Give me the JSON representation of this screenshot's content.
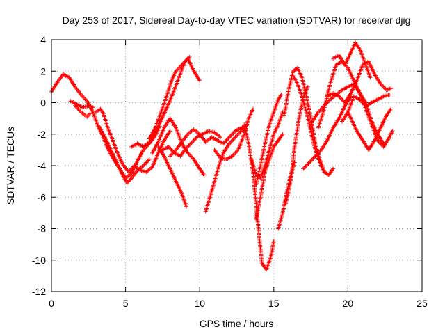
{
  "chart_data": {
    "type": "scatter",
    "title": "Day 253 of 2017, Sidereal Day-to-day VTEC variation (SDTVAR) for receiver djig",
    "xlabel": "GPS time / hours",
    "ylabel": "SDTVAR / TECUs",
    "xlim": [
      0,
      25
    ],
    "ylim": [
      -12,
      4
    ],
    "xticks": [
      0,
      5,
      10,
      15,
      20,
      25
    ],
    "yticks": [
      -12,
      -10,
      -8,
      -6,
      -4,
      -2,
      0,
      2,
      4
    ],
    "grid": true,
    "marker": "+",
    "color": "#ff0000",
    "series": [
      {
        "points": [
          [
            0.0,
            0.7
          ],
          [
            0.4,
            1.3
          ],
          [
            0.8,
            1.8
          ],
          [
            1.2,
            1.6
          ],
          [
            1.6,
            1.0
          ],
          [
            2.0,
            0.5
          ],
          [
            2.4,
            0.1
          ],
          [
            2.8,
            -0.6
          ],
          [
            3.1,
            -1.4
          ],
          [
            3.5,
            -2.2
          ],
          [
            3.8,
            -2.9
          ],
          [
            4.2,
            -3.6
          ],
          [
            4.6,
            -4.2
          ],
          [
            5.0,
            -4.8
          ],
          [
            5.4,
            -4.5
          ],
          [
            5.8,
            -3.7
          ],
          [
            6.2,
            -3.0
          ],
          [
            6.6,
            -2.6
          ],
          [
            7.0,
            -2.1
          ],
          [
            7.3,
            -1.5
          ]
        ]
      },
      {
        "points": [
          [
            1.3,
            0.1
          ],
          [
            1.7,
            -0.1
          ],
          [
            2.1,
            -0.3
          ],
          [
            2.5,
            -0.2
          ],
          [
            2.8,
            -0.3
          ]
        ]
      },
      {
        "points": [
          [
            1.6,
            -0.2
          ],
          [
            2.0,
            -0.6
          ],
          [
            2.4,
            -0.9
          ],
          [
            2.6,
            -0.7
          ]
        ]
      },
      {
        "points": [
          [
            3.0,
            -0.6
          ],
          [
            3.3,
            -0.4
          ],
          [
            3.5,
            -0.7
          ],
          [
            3.8,
            -1.6
          ],
          [
            4.1,
            -2.3
          ],
          [
            4.4,
            -3.1
          ],
          [
            4.8,
            -3.9
          ],
          [
            5.2,
            -4.4
          ],
          [
            5.6,
            -4.0
          ],
          [
            6.0,
            -4.3
          ],
          [
            6.4,
            -4.4
          ],
          [
            6.8,
            -4.1
          ],
          [
            7.2,
            -3.2
          ],
          [
            7.6,
            -2.4
          ],
          [
            8.0,
            -1.8
          ]
        ]
      },
      {
        "points": [
          [
            3.2,
            -1.5
          ],
          [
            3.6,
            -2.2
          ],
          [
            4.0,
            -3.0
          ],
          [
            4.4,
            -3.8
          ],
          [
            4.8,
            -4.6
          ],
          [
            5.1,
            -5.1
          ],
          [
            5.4,
            -4.8
          ],
          [
            5.8,
            -4.3
          ],
          [
            6.2,
            -4.0
          ],
          [
            6.6,
            -3.6
          ]
        ]
      },
      {
        "points": [
          [
            5.4,
            -2.8
          ],
          [
            5.8,
            -2.6
          ],
          [
            6.2,
            -2.8
          ],
          [
            6.6,
            -2.5
          ],
          [
            7.0,
            -1.9
          ],
          [
            7.4,
            -1.1
          ],
          [
            7.8,
            -0.3
          ],
          [
            8.2,
            0.6
          ],
          [
            8.6,
            1.6
          ],
          [
            9.0,
            2.6
          ],
          [
            9.3,
            2.9
          ]
        ]
      },
      {
        "points": [
          [
            6.6,
            -2.3
          ],
          [
            7.0,
            -1.6
          ],
          [
            7.4,
            -0.6
          ],
          [
            7.8,
            0.5
          ],
          [
            8.1,
            1.4
          ],
          [
            8.4,
            2.0
          ],
          [
            8.8,
            2.4
          ],
          [
            9.2,
            2.8
          ],
          [
            9.6,
            2.0
          ],
          [
            10.0,
            1.4
          ]
        ]
      },
      {
        "points": [
          [
            6.8,
            -3.2
          ],
          [
            7.2,
            -2.5
          ],
          [
            7.6,
            -1.6
          ],
          [
            8.0,
            -1.0
          ],
          [
            8.4,
            -1.6
          ],
          [
            8.8,
            -2.6
          ],
          [
            9.2,
            -3.2
          ],
          [
            9.6,
            -3.6
          ],
          [
            10.0,
            -4.2
          ],
          [
            10.3,
            -4.6
          ]
        ]
      },
      {
        "points": [
          [
            7.2,
            -2.8
          ],
          [
            7.6,
            -3.4
          ],
          [
            8.0,
            -4.2
          ],
          [
            8.4,
            -5.0
          ],
          [
            8.8,
            -5.8
          ],
          [
            9.1,
            -6.6
          ]
        ]
      },
      {
        "points": [
          [
            7.5,
            -3.0
          ],
          [
            7.9,
            -2.8
          ],
          [
            8.3,
            -3.2
          ],
          [
            8.7,
            -3.4
          ],
          [
            9.0,
            -3.0
          ],
          [
            9.4,
            -2.6
          ],
          [
            9.8,
            -2.2
          ],
          [
            10.2,
            -2.0
          ],
          [
            10.6,
            -1.8
          ],
          [
            11.0,
            -1.9
          ],
          [
            11.4,
            -2.2
          ]
        ]
      },
      {
        "points": [
          [
            8.0,
            -3.4
          ],
          [
            8.4,
            -3.0
          ],
          [
            8.8,
            -2.5
          ],
          [
            9.2,
            -2.0
          ],
          [
            9.6,
            -1.7
          ],
          [
            10.0,
            -2.0
          ],
          [
            10.4,
            -2.5
          ],
          [
            10.8,
            -2.2
          ],
          [
            11.2,
            -2.4
          ],
          [
            11.6,
            -2.6
          ],
          [
            12.0,
            -2.2
          ],
          [
            12.4,
            -1.8
          ],
          [
            12.8,
            -1.6
          ],
          [
            13.1,
            -1.5
          ]
        ]
      },
      {
        "points": [
          [
            10.4,
            -6.9
          ],
          [
            10.7,
            -6.0
          ],
          [
            11.0,
            -5.0
          ],
          [
            11.3,
            -4.0
          ],
          [
            11.6,
            -3.2
          ],
          [
            12.0,
            -2.6
          ],
          [
            12.4,
            -2.2
          ],
          [
            12.8,
            -1.8
          ],
          [
            13.2,
            -1.4
          ]
        ]
      },
      {
        "points": [
          [
            11.0,
            -3.0
          ],
          [
            11.4,
            -3.5
          ],
          [
            11.8,
            -3.6
          ],
          [
            12.2,
            -3.4
          ],
          [
            12.6,
            -3.0
          ],
          [
            13.0,
            -2.0
          ],
          [
            13.3,
            -1.0
          ],
          [
            13.6,
            -0.4
          ]
        ]
      },
      {
        "points": [
          [
            13.0,
            -1.4
          ],
          [
            13.3,
            -2.6
          ],
          [
            13.6,
            -4.4
          ],
          [
            13.8,
            -6.4
          ],
          [
            14.0,
            -8.4
          ],
          [
            14.2,
            -10.2
          ],
          [
            14.5,
            -10.6
          ],
          [
            14.8,
            -9.8
          ],
          [
            15.0,
            -8.8
          ]
        ]
      },
      {
        "points": [
          [
            13.5,
            -3.6
          ],
          [
            13.8,
            -4.6
          ],
          [
            14.1,
            -4.8
          ],
          [
            14.4,
            -4.0
          ],
          [
            14.7,
            -3.0
          ],
          [
            15.0,
            -2.0
          ],
          [
            15.3,
            -1.4
          ],
          [
            15.6,
            -0.6
          ]
        ]
      },
      {
        "points": [
          [
            13.8,
            -5.2
          ],
          [
            14.1,
            -4.0
          ],
          [
            14.4,
            -2.6
          ],
          [
            14.7,
            -1.4
          ],
          [
            15.0,
            -0.6
          ],
          [
            15.3,
            0.2
          ],
          [
            15.5,
            0.5
          ]
        ]
      },
      {
        "points": [
          [
            13.8,
            -7.4
          ],
          [
            14.1,
            -6.0
          ],
          [
            14.4,
            -4.4
          ],
          [
            14.7,
            -3.6
          ],
          [
            15.0,
            -2.8
          ],
          [
            15.3,
            -2.4
          ],
          [
            15.6,
            -2.0
          ]
        ]
      },
      {
        "points": [
          [
            15.3,
            -8.0
          ],
          [
            15.6,
            -7.0
          ],
          [
            15.9,
            -5.6
          ],
          [
            16.2,
            -4.4
          ],
          [
            16.4,
            -3.8
          ]
        ]
      },
      {
        "points": [
          [
            15.8,
            -6.4
          ],
          [
            16.0,
            -5.6
          ],
          [
            16.2,
            -4.6
          ],
          [
            16.4,
            -2.8
          ],
          [
            16.7,
            -1.0
          ],
          [
            17.0,
            0.4
          ],
          [
            17.3,
            1.0
          ]
        ]
      },
      {
        "points": [
          [
            15.7,
            -0.8
          ],
          [
            16.0,
            0.8
          ],
          [
            16.3,
            2.0
          ],
          [
            16.6,
            2.2
          ],
          [
            16.9,
            1.6
          ],
          [
            17.2,
            0.4
          ],
          [
            17.5,
            -1.0
          ],
          [
            17.8,
            -2.6
          ],
          [
            18.1,
            -3.6
          ],
          [
            18.4,
            -4.4
          ],
          [
            18.7,
            -4.6
          ],
          [
            19.0,
            -4.2
          ]
        ]
      },
      {
        "points": [
          [
            16.3,
            1.7
          ],
          [
            16.6,
            1.2
          ],
          [
            16.9,
            0.4
          ],
          [
            17.2,
            -0.6
          ],
          [
            17.5,
            -1.8
          ],
          [
            17.8,
            -3.0
          ],
          [
            18.1,
            -3.8
          ],
          [
            18.4,
            -4.4
          ]
        ]
      },
      {
        "points": [
          [
            17.0,
            -4.2
          ],
          [
            17.4,
            -3.8
          ],
          [
            17.8,
            -3.4
          ],
          [
            18.2,
            -3.0
          ],
          [
            18.6,
            -2.4
          ],
          [
            19.0,
            -1.6
          ],
          [
            19.4,
            -1.0
          ],
          [
            19.8,
            -0.2
          ],
          [
            20.2,
            0.4
          ]
        ]
      },
      {
        "points": [
          [
            17.6,
            -1.2
          ],
          [
            18.0,
            -0.6
          ],
          [
            18.4,
            -0.2
          ],
          [
            18.8,
            0.2
          ],
          [
            19.2,
            0.5
          ],
          [
            19.6,
            0.8
          ],
          [
            20.0,
            1.0
          ],
          [
            20.4,
            1.2
          ],
          [
            20.8,
            0.6
          ],
          [
            21.2,
            0.0
          ],
          [
            21.6,
            -1.2
          ],
          [
            22.0,
            -2.0
          ],
          [
            22.4,
            -2.6
          ]
        ]
      },
      {
        "points": [
          [
            18.0,
            -1.6
          ],
          [
            18.4,
            -0.4
          ],
          [
            18.8,
            1.2
          ],
          [
            19.2,
            2.4
          ],
          [
            19.6,
            2.6
          ],
          [
            20.0,
            2.2
          ],
          [
            20.4,
            1.4
          ],
          [
            20.8,
            0.6
          ],
          [
            21.2,
            -0.4
          ],
          [
            21.6,
            -1.4
          ],
          [
            22.0,
            -2.4
          ],
          [
            22.4,
            -2.8
          ],
          [
            22.8,
            -2.2
          ],
          [
            23.0,
            -1.8
          ]
        ]
      },
      {
        "points": [
          [
            18.6,
            0.4
          ],
          [
            19.0,
            0.6
          ],
          [
            19.4,
            0.4
          ],
          [
            19.8,
            0.0
          ],
          [
            20.2,
            0.6
          ],
          [
            20.6,
            1.4
          ],
          [
            21.0,
            2.4
          ],
          [
            21.4,
            2.6
          ],
          [
            21.8,
            1.8
          ],
          [
            22.2,
            1.2
          ],
          [
            22.6,
            0.8
          ],
          [
            22.9,
            0.9
          ]
        ]
      },
      {
        "points": [
          [
            19.0,
            2.8
          ],
          [
            19.4,
            3.0
          ],
          [
            19.8,
            2.4
          ],
          [
            20.2,
            3.2
          ],
          [
            20.5,
            3.8
          ],
          [
            20.8,
            3.4
          ],
          [
            21.2,
            2.4
          ],
          [
            21.5,
            1.6
          ]
        ]
      },
      {
        "points": [
          [
            19.6,
            -1.2
          ],
          [
            20.0,
            -0.6
          ],
          [
            20.4,
            0.4
          ],
          [
            20.8,
            0.2
          ],
          [
            21.2,
            -0.2
          ],
          [
            21.6,
            0.0
          ],
          [
            22.0,
            0.2
          ],
          [
            22.4,
            0.4
          ],
          [
            22.8,
            0.5
          ]
        ]
      },
      {
        "points": [
          [
            20.0,
            -0.6
          ],
          [
            20.3,
            -1.2
          ],
          [
            20.6,
            -1.8
          ],
          [
            21.0,
            -2.4
          ],
          [
            21.4,
            -3.0
          ],
          [
            21.8,
            -2.4
          ],
          [
            22.2,
            -1.6
          ],
          [
            22.6,
            -0.8
          ],
          [
            22.9,
            -0.4
          ]
        ]
      }
    ]
  }
}
